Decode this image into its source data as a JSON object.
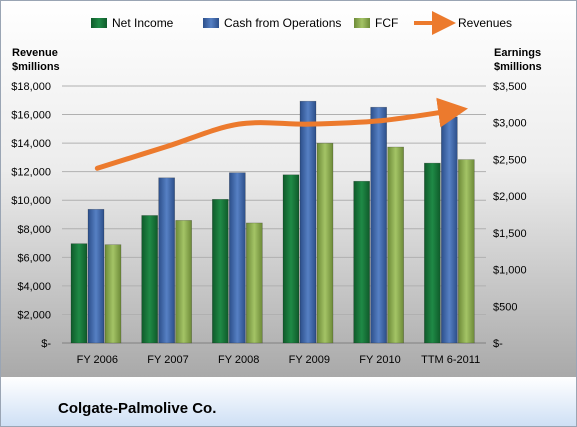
{
  "colors": {
    "net_income": "#1a7a3c",
    "cash_from_operations": "#3f66a8",
    "fcf": "#8aab4f",
    "revenues": "#ec7a2d"
  },
  "company": "Colgate-Palmolive Co.",
  "chart_data": {
    "type": "bar",
    "categories": [
      "FY 2006",
      "FY 2007",
      "FY 2008",
      "FY 2009",
      "FY 2010",
      "TTM 6-2011"
    ],
    "left_axis": {
      "title_line1": "Revenue",
      "title_line2": "$millions",
      "ylim": [
        0,
        18000
      ],
      "ticks": [
        "$-",
        "$2,000",
        "$4,000",
        "$6,000",
        "$8,000",
        "$10,000",
        "$12,000",
        "$14,000",
        "$16,000",
        "$18,000"
      ]
    },
    "right_axis": {
      "title_line1": "Earnings",
      "title_line2": "$millions",
      "ylim": [
        0,
        3500
      ],
      "ticks": [
        "$-",
        "$500",
        "$1,000",
        "$1,500",
        "$2,000",
        "$2,500",
        "$3,000",
        "$3,500"
      ]
    },
    "legend_position": "top",
    "series": [
      {
        "name": "Net Income",
        "axis": "right",
        "kind": "bar",
        "values": [
          1353,
          1737,
          1957,
          2291,
          2203,
          2450
        ]
      },
      {
        "name": "Cash from Operations",
        "axis": "right",
        "kind": "bar",
        "values": [
          1821,
          2250,
          2319,
          3293,
          3211,
          3079
        ]
      },
      {
        "name": "FCF",
        "axis": "right",
        "kind": "bar",
        "values": [
          1339,
          1670,
          1635,
          2721,
          2669,
          2498
        ]
      },
      {
        "name": "Revenues",
        "axis": "left",
        "kind": "line",
        "values": [
          12238,
          13790,
          15330,
          15327,
          15564,
          16258
        ]
      }
    ]
  }
}
